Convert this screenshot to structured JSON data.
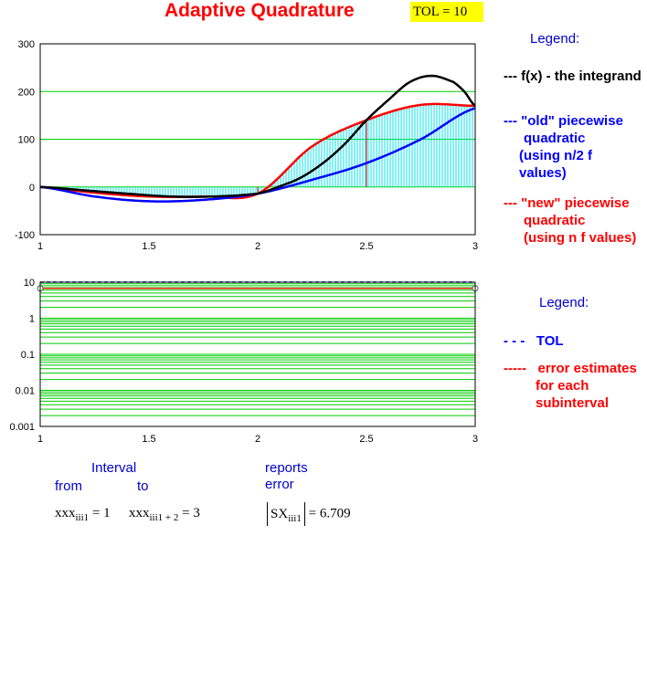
{
  "title": "Adaptive Quadrature",
  "tol_label": "TOL = 10",
  "legend1": {
    "title": "Legend:",
    "f_line": "--- f(x) - the integrand",
    "old_lines": [
      "--- \"old\" piecewise",
      "quadratic",
      "(using n/2 f",
      "values)"
    ],
    "new_lines": [
      "--- \"new\" piecewise",
      "quadratic",
      "(using n f values)"
    ]
  },
  "legend2": {
    "title": "Legend:",
    "tol_line": "- - -   TOL",
    "err_lines": [
      "-----   error estimates",
      "for each",
      "subinterval"
    ]
  },
  "info": {
    "interval": "Interval",
    "from": "from",
    "to": "to",
    "reports": "reports",
    "error": "error",
    "from_var": "xxx",
    "from_sub": "iii1",
    "from_val": "= 1",
    "to_var": "xxx",
    "to_sub": "iii1 + 2",
    "to_val": "= 3",
    "err_var": "SX",
    "err_sub": "iii1",
    "err_val": "= 6.709"
  },
  "colors": {
    "grid": "#00cc00",
    "f": "#000000",
    "old": "#0000ff",
    "new": "#ff0000",
    "fill": "#00e5ee",
    "tol": "#0000ff"
  },
  "chart_data": [
    {
      "type": "line",
      "xlim": [
        1,
        3
      ],
      "ylim": [
        -100,
        300
      ],
      "xticks": [
        "1",
        "1.5",
        "2",
        "2.5",
        "3"
      ],
      "yticks": [
        "300",
        "200",
        "100",
        "0",
        "-100"
      ],
      "series": [
        {
          "key": "f",
          "x": [
            1,
            1.2,
            1.4,
            1.6,
            1.8,
            2,
            2.1,
            2.2,
            2.3,
            2.4,
            2.5,
            2.6,
            2.7,
            2.8,
            2.9,
            2.95,
            3
          ],
          "y": [
            0,
            -7,
            -14,
            -20,
            -20,
            -14,
            1,
            20,
            50,
            90,
            140,
            182,
            220,
            233,
            220,
            200,
            170
          ]
        },
        {
          "key": "old",
          "x": [
            1,
            1.25,
            1.5,
            1.75,
            2,
            2.25,
            2.5,
            2.75,
            3
          ],
          "y": [
            0,
            -20,
            -30,
            -27,
            -14,
            15,
            50,
            100,
            165
          ]
        },
        {
          "key": "new",
          "x": [
            1,
            1.25,
            1.5,
            1.75,
            2,
            2.25,
            2.5,
            2.75,
            3
          ],
          "y": [
            0,
            -12,
            -20,
            -20,
            -14,
            85,
            140,
            172,
            170
          ]
        }
      ],
      "subinterval_breaks": [
        2,
        2.5
      ]
    },
    {
      "type": "line",
      "yscale": "log",
      "xlim": [
        1,
        3
      ],
      "ylim": [
        0.001,
        10
      ],
      "xticks": [
        "1",
        "1.5",
        "2",
        "2.5",
        "3"
      ],
      "yticks": [
        "10",
        "1",
        "0.1",
        "0.01",
        "0.001"
      ],
      "series": [
        {
          "key": "tol",
          "x": [
            1,
            3
          ],
          "y": [
            10,
            10
          ]
        },
        {
          "key": "err",
          "x": [
            1,
            3
          ],
          "y": [
            6.709,
            6.709
          ]
        }
      ]
    }
  ]
}
